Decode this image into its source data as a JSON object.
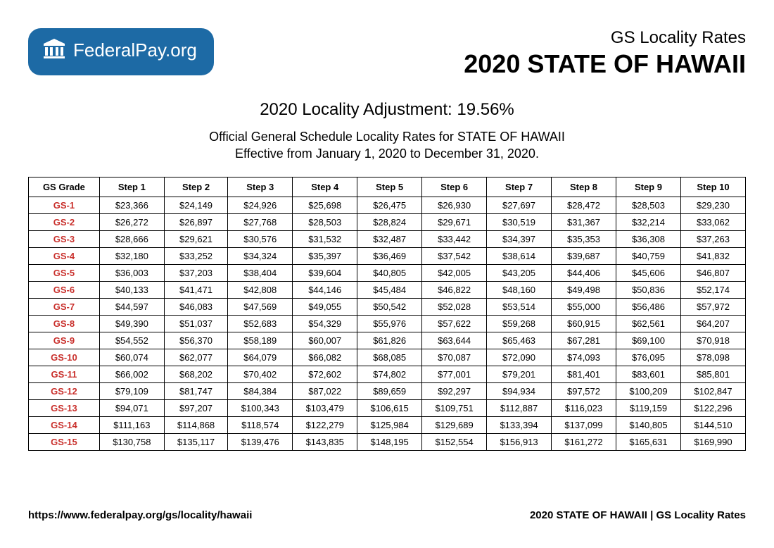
{
  "logo": {
    "text_bold": "Federal",
    "text_light": "Pay.org"
  },
  "header": {
    "subtitle": "GS Locality Rates",
    "title": "2020 STATE OF HAWAII"
  },
  "adjustment": "2020 Locality Adjustment: 19.56%",
  "description_line1": "Official General Schedule Locality Rates for STATE OF HAWAII",
  "description_line2": "Effective from January 1, 2020 to December 31, 2020.",
  "table": {
    "columns": [
      "GS Grade",
      "Step 1",
      "Step 2",
      "Step 3",
      "Step 4",
      "Step 5",
      "Step 6",
      "Step 7",
      "Step 8",
      "Step 9",
      "Step 10"
    ],
    "rows": [
      [
        "GS-1",
        "$23,366",
        "$24,149",
        "$24,926",
        "$25,698",
        "$26,475",
        "$26,930",
        "$27,697",
        "$28,472",
        "$28,503",
        "$29,230"
      ],
      [
        "GS-2",
        "$26,272",
        "$26,897",
        "$27,768",
        "$28,503",
        "$28,824",
        "$29,671",
        "$30,519",
        "$31,367",
        "$32,214",
        "$33,062"
      ],
      [
        "GS-3",
        "$28,666",
        "$29,621",
        "$30,576",
        "$31,532",
        "$32,487",
        "$33,442",
        "$34,397",
        "$35,353",
        "$36,308",
        "$37,263"
      ],
      [
        "GS-4",
        "$32,180",
        "$33,252",
        "$34,324",
        "$35,397",
        "$36,469",
        "$37,542",
        "$38,614",
        "$39,687",
        "$40,759",
        "$41,832"
      ],
      [
        "GS-5",
        "$36,003",
        "$37,203",
        "$38,404",
        "$39,604",
        "$40,805",
        "$42,005",
        "$43,205",
        "$44,406",
        "$45,606",
        "$46,807"
      ],
      [
        "GS-6",
        "$40,133",
        "$41,471",
        "$42,808",
        "$44,146",
        "$45,484",
        "$46,822",
        "$48,160",
        "$49,498",
        "$50,836",
        "$52,174"
      ],
      [
        "GS-7",
        "$44,597",
        "$46,083",
        "$47,569",
        "$49,055",
        "$50,542",
        "$52,028",
        "$53,514",
        "$55,000",
        "$56,486",
        "$57,972"
      ],
      [
        "GS-8",
        "$49,390",
        "$51,037",
        "$52,683",
        "$54,329",
        "$55,976",
        "$57,622",
        "$59,268",
        "$60,915",
        "$62,561",
        "$64,207"
      ],
      [
        "GS-9",
        "$54,552",
        "$56,370",
        "$58,189",
        "$60,007",
        "$61,826",
        "$63,644",
        "$65,463",
        "$67,281",
        "$69,100",
        "$70,918"
      ],
      [
        "GS-10",
        "$60,074",
        "$62,077",
        "$64,079",
        "$66,082",
        "$68,085",
        "$70,087",
        "$72,090",
        "$74,093",
        "$76,095",
        "$78,098"
      ],
      [
        "GS-11",
        "$66,002",
        "$68,202",
        "$70,402",
        "$72,602",
        "$74,802",
        "$77,001",
        "$79,201",
        "$81,401",
        "$83,601",
        "$85,801"
      ],
      [
        "GS-12",
        "$79,109",
        "$81,747",
        "$84,384",
        "$87,022",
        "$89,659",
        "$92,297",
        "$94,934",
        "$97,572",
        "$100,209",
        "$102,847"
      ],
      [
        "GS-13",
        "$94,071",
        "$97,207",
        "$100,343",
        "$103,479",
        "$106,615",
        "$109,751",
        "$112,887",
        "$116,023",
        "$119,159",
        "$122,296"
      ],
      [
        "GS-14",
        "$111,163",
        "$114,868",
        "$118,574",
        "$122,279",
        "$125,984",
        "$129,689",
        "$133,394",
        "$137,099",
        "$140,805",
        "$144,510"
      ],
      [
        "GS-15",
        "$130,758",
        "$135,117",
        "$139,476",
        "$143,835",
        "$148,195",
        "$152,554",
        "$156,913",
        "$161,272",
        "$165,631",
        "$169,990"
      ]
    ]
  },
  "footer": {
    "url": "https://www.federalpay.org/gs/locality/hawaii",
    "label": "2020 STATE OF HAWAII | GS Locality Rates"
  },
  "colors": {
    "badge_bg": "#1d6aa5",
    "grade_color": "#c9302c"
  }
}
